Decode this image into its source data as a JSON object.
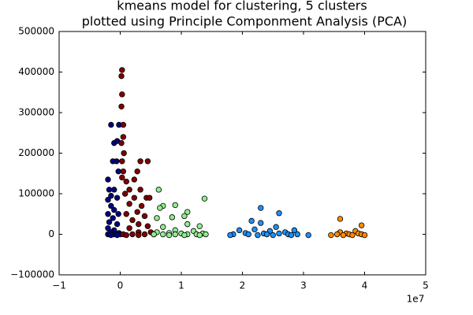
{
  "chart_data": {
    "type": "scatter",
    "title": "kmeans model for clustering, 5 clusters",
    "subtitle": "plotted using Principle Componment Analysis (PCA)",
    "x_offset_label": "1e7",
    "xlim": [
      -10000000,
      50000000
    ],
    "xticks": [
      {
        "value": -10000000,
        "label": "−1"
      },
      {
        "value": 0,
        "label": "0"
      },
      {
        "value": 10000000,
        "label": "1"
      },
      {
        "value": 20000000,
        "label": "2"
      },
      {
        "value": 30000000,
        "label": "3"
      },
      {
        "value": 40000000,
        "label": "4"
      },
      {
        "value": 50000000,
        "label": "5"
      }
    ],
    "ylim": [
      -100000,
      500000
    ],
    "yticks": [
      {
        "value": -100000,
        "label": "−100000"
      },
      0,
      100000,
      200000,
      300000,
      400000,
      500000
    ],
    "series": [
      {
        "color": "#000080",
        "x": [
          -1500000,
          -200000,
          -1000000,
          -500000,
          -1200000,
          -600000,
          -300000,
          -2000000,
          -1800000,
          -1000000,
          -1500000,
          -2000000,
          -500000,
          -1500000,
          -1000000,
          -2000000,
          -300000,
          -1200000,
          -1800000,
          -500000,
          -2000000,
          -1000000,
          -1500000,
          -200000,
          -2000000,
          -1000000,
          0,
          -1500000,
          -500000
        ],
        "y": [
          270000,
          270000,
          225000,
          230000,
          180000,
          180000,
          155000,
          135000,
          110000,
          110000,
          95000,
          85000,
          90000,
          70000,
          60000,
          50000,
          50000,
          40000,
          30000,
          25000,
          15000,
          10000,
          5000,
          3000,
          0,
          0,
          0,
          -2000,
          -2000
        ]
      },
      {
        "color": "#800000",
        "x": [
          300000,
          200000,
          300000,
          200000,
          500000,
          500000,
          200000,
          600000,
          3300000,
          4500000,
          300000,
          500000,
          2800000,
          300000,
          2300000,
          1000000,
          1500000,
          3300000,
          800000,
          4300000,
          4800000,
          2300000,
          1500000,
          3500000,
          2800000,
          1000000,
          4000000,
          2000000,
          3000000,
          4500000,
          1500000,
          5000000,
          3000000,
          500000,
          2000000,
          4000000,
          5500000,
          1000000,
          3000000
        ],
        "y": [
          405000,
          390000,
          345000,
          315000,
          270000,
          240000,
          225000,
          200000,
          180000,
          180000,
          180000,
          155000,
          155000,
          140000,
          135000,
          130000,
          110000,
          110000,
          100000,
          90000,
          90000,
          90000,
          75000,
          70000,
          55000,
          50000,
          45000,
          35000,
          25000,
          20000,
          15000,
          5000,
          5000,
          0,
          0,
          0,
          0,
          -2000,
          -2000
        ]
      },
      {
        "color": "#90ee90",
        "x": [
          6300000,
          13800000,
          7000000,
          9000000,
          6500000,
          11000000,
          10500000,
          8500000,
          6000000,
          11000000,
          13000000,
          7000000,
          9000000,
          12000000,
          6000000,
          8000000,
          10000000,
          13500000,
          5500000,
          7000000,
          9000000,
          11000000,
          12500000,
          14000000,
          8000000,
          10500000,
          13000000
        ],
        "y": [
          110000,
          88000,
          70000,
          72000,
          65000,
          55000,
          45000,
          42000,
          40000,
          25000,
          20000,
          18000,
          10000,
          8000,
          5000,
          3000,
          2000,
          2000,
          0,
          0,
          0,
          0,
          0,
          0,
          -2000,
          -2000,
          -2000
        ]
      },
      {
        "color": "#1e90ff",
        "x": [
          23000000,
          26000000,
          21500000,
          23000000,
          25500000,
          22000000,
          19500000,
          28500000,
          24500000,
          27000000,
          20500000,
          23500000,
          26000000,
          18500000,
          21000000,
          24000000,
          27500000,
          29000000,
          30800000,
          18000000,
          22500000,
          25000000,
          28000000
        ],
        "y": [
          65000,
          52000,
          33000,
          28000,
          18000,
          12000,
          10000,
          10000,
          8000,
          5000,
          3000,
          2000,
          2000,
          0,
          0,
          0,
          0,
          0,
          -2000,
          -2000,
          -2000,
          -2000,
          -2000
        ]
      },
      {
        "color": "#ff8c00",
        "x": [
          36000000,
          39500000,
          38500000,
          36000000,
          37000000,
          39000000,
          34500000,
          35500000,
          36500000,
          37500000,
          38000000,
          39500000,
          40000000
        ],
        "y": [
          38000,
          22000,
          8000,
          5000,
          2000,
          2000,
          -2000,
          0,
          -2000,
          0,
          -2000,
          0,
          -2000
        ]
      }
    ]
  }
}
